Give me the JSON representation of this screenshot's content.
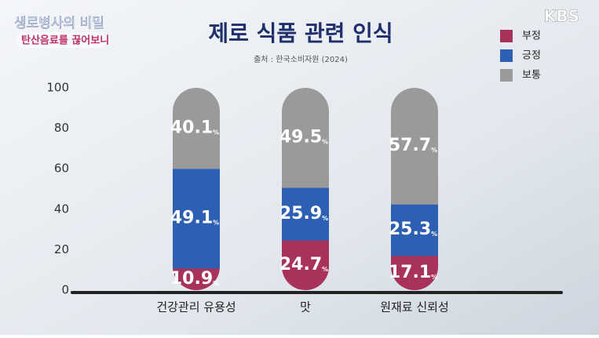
{
  "overlay": {
    "show_title": "생로병사의 비밀",
    "episode_title": "탄산음료를 끊어보니",
    "logo": "KBS"
  },
  "chart_data": {
    "type": "stacked-bar",
    "title": "제로 식품 관련 인식",
    "subtitle": "출처 : 한국소비자원 (2024)",
    "categories": [
      "건강관리 유용성",
      "맛",
      "원재료 신뢰성"
    ],
    "series": [
      {
        "name": "부정",
        "color": "#a8325a",
        "values": [
          10.9,
          24.7,
          17.1
        ]
      },
      {
        "name": "긍정",
        "color": "#2d5fb3",
        "values": [
          49.1,
          25.9,
          25.3
        ]
      },
      {
        "name": "보통",
        "color": "#9a9a9a",
        "values": [
          40.1,
          49.5,
          57.7
        ]
      }
    ],
    "value_label_unit": "%",
    "ylim": [
      0,
      100
    ],
    "yticks": [
      0,
      20,
      40,
      60,
      80,
      100
    ],
    "legend": "top-right"
  }
}
